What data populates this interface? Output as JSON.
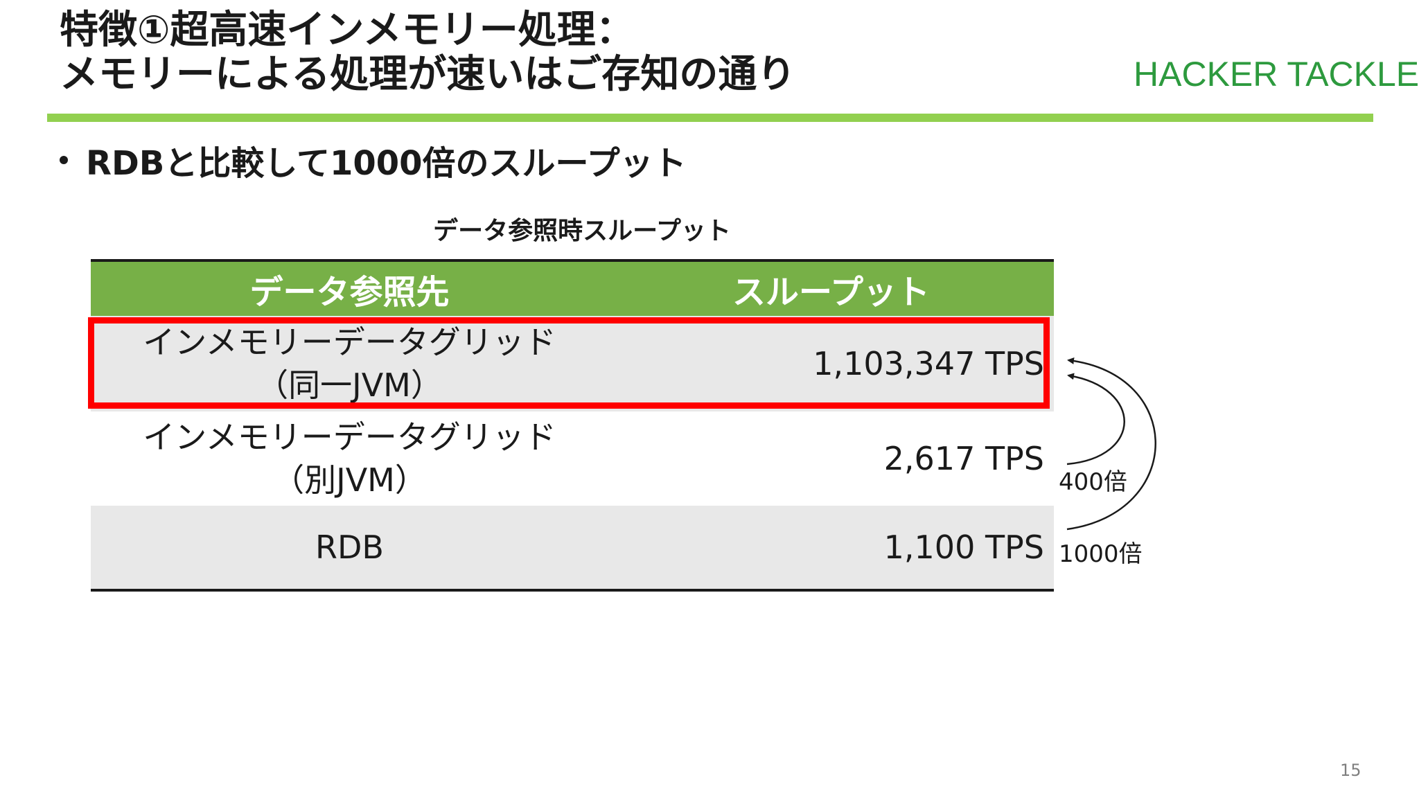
{
  "title": {
    "line1": "特徴①超高速インメモリー処理：",
    "line2": "メモリーによる処理が速いはご存知の通り"
  },
  "brand": "HACKER TACKLE",
  "bullet": "RDBと比較して1000倍のスループット",
  "table": {
    "caption": "データ参照時スループット",
    "headers": [
      "データ参照先",
      "スループット"
    ],
    "rows": [
      {
        "name_line1": "インメモリーデータグリッド",
        "name_line2": "（同一JVM）",
        "value": "1,103,347 TPS"
      },
      {
        "name_line1": "インメモリーデータグリッド",
        "name_line2": "（別JVM）",
        "value": "2,617 TPS"
      },
      {
        "name_line1": "RDB",
        "name_line2": "",
        "value": "1,100 TPS"
      }
    ]
  },
  "comparisons": {
    "vs_separate_jvm": "400倍",
    "vs_rdb": "1000倍"
  },
  "colors": {
    "accent_green": "#92d050",
    "header_green": "#77b047",
    "brand_green": "#2d9a3e",
    "highlight_red": "#ff0000",
    "row_gray": "#e8e8e8"
  },
  "page_number": "15"
}
